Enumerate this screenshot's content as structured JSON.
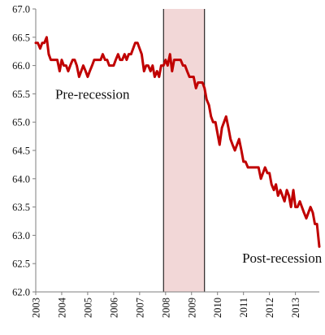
{
  "chart_data": {
    "type": "line",
    "title": "",
    "xlabel": "",
    "ylabel": "",
    "xlim": [
      2003.0,
      2013.92
    ],
    "ylim": [
      62.0,
      67.0
    ],
    "y_ticks": [
      "62.0",
      "62.5",
      "63.0",
      "63.5",
      "64.0",
      "64.5",
      "65.0",
      "65.5",
      "66.0",
      "66.5",
      "67.0"
    ],
    "x_ticks": [
      "2003",
      "2004",
      "2005",
      "2006",
      "2007",
      "2008",
      "2009",
      "2010",
      "2011",
      "2012",
      "2013"
    ],
    "grid": false,
    "legend": "none",
    "series_color": "#c00000",
    "recession_shading": {
      "start": 2007.92,
      "end": 2009.5,
      "fill": "#f2d7d7",
      "edge_color": "#000000"
    },
    "annotations": [
      {
        "text": "Pre-recession",
        "x": 2003.75,
        "y": 65.5
      },
      {
        "text": "Post-recession",
        "x": 2010.95,
        "y": 62.6
      }
    ],
    "series": [
      {
        "x": [
          2003.0,
          2003.08,
          2003.17,
          2003.25,
          2003.33,
          2003.42,
          2003.5,
          2003.58,
          2003.67,
          2003.75,
          2003.83,
          2003.92,
          2004.0,
          2004.08,
          2004.17,
          2004.25,
          2004.33,
          2004.42,
          2004.5,
          2004.58,
          2004.67,
          2004.75,
          2004.83,
          2004.92,
          2005.0,
          2005.08,
          2005.17,
          2005.25,
          2005.33,
          2005.42,
          2005.5,
          2005.58,
          2005.67,
          2005.75,
          2005.83,
          2005.92,
          2006.0,
          2006.08,
          2006.17,
          2006.25,
          2006.33,
          2006.42,
          2006.5,
          2006.58,
          2006.67,
          2006.75,
          2006.83,
          2006.92,
          2007.0,
          2007.08,
          2007.17,
          2007.25,
          2007.33,
          2007.42,
          2007.5,
          2007.58,
          2007.67,
          2007.75,
          2007.83,
          2007.92,
          2008.0,
          2008.08,
          2008.17,
          2008.25,
          2008.33,
          2008.42,
          2008.5,
          2008.58,
          2008.67,
          2008.75,
          2008.83,
          2008.92,
          2009.0,
          2009.08,
          2009.17,
          2009.25,
          2009.33,
          2009.42,
          2009.5,
          2009.58,
          2009.67,
          2009.75,
          2009.83,
          2009.92,
          2010.0,
          2010.08,
          2010.17,
          2010.25,
          2010.33,
          2010.42,
          2010.5,
          2010.58,
          2010.67,
          2010.75,
          2010.83,
          2010.92,
          2011.0,
          2011.08,
          2011.17,
          2011.25,
          2011.33,
          2011.42,
          2011.5,
          2011.58,
          2011.67,
          2011.75,
          2011.83,
          2011.92,
          2012.0,
          2012.08,
          2012.17,
          2012.25,
          2012.33,
          2012.42,
          2012.5,
          2012.58,
          2012.67,
          2012.75,
          2012.83,
          2012.92,
          2013.0,
          2013.08,
          2013.17,
          2013.25,
          2013.33,
          2013.42,
          2013.5,
          2013.58,
          2013.67,
          2013.75,
          2013.83,
          2013.92
        ],
        "y": [
          66.4,
          66.4,
          66.3,
          66.4,
          66.4,
          66.5,
          66.2,
          66.1,
          66.1,
          66.1,
          66.1,
          65.9,
          66.1,
          66.0,
          66.0,
          65.9,
          66.0,
          66.1,
          66.1,
          66.0,
          65.8,
          65.9,
          66.0,
          65.9,
          65.8,
          65.9,
          66.0,
          66.1,
          66.1,
          66.1,
          66.1,
          66.2,
          66.1,
          66.1,
          66.0,
          66.0,
          66.0,
          66.1,
          66.2,
          66.1,
          66.1,
          66.2,
          66.1,
          66.2,
          66.2,
          66.3,
          66.4,
          66.4,
          66.3,
          66.2,
          65.9,
          66.0,
          66.0,
          65.9,
          66.0,
          65.8,
          65.9,
          65.8,
          66.0,
          66.0,
          66.1,
          66.0,
          66.2,
          65.9,
          66.1,
          66.1,
          66.1,
          66.1,
          66.0,
          66.0,
          65.9,
          65.8,
          65.8,
          65.8,
          65.6,
          65.7,
          65.7,
          65.7,
          65.6,
          65.4,
          65.3,
          65.1,
          65.0,
          65.0,
          64.8,
          64.6,
          64.9,
          65.0,
          65.1,
          64.9,
          64.7,
          64.6,
          64.5,
          64.6,
          64.7,
          64.5,
          64.3,
          64.3,
          64.2,
          64.2,
          64.2,
          64.2,
          64.2,
          64.2,
          64.0,
          64.1,
          64.2,
          64.1,
          64.1,
          63.9,
          63.8,
          63.9,
          63.7,
          63.8,
          63.7,
          63.6,
          63.8,
          63.7,
          63.5,
          63.8,
          63.5,
          63.5,
          63.6,
          63.5,
          63.4,
          63.3,
          63.4,
          63.5,
          63.4,
          63.2,
          63.2,
          62.8
        ]
      }
    ]
  }
}
